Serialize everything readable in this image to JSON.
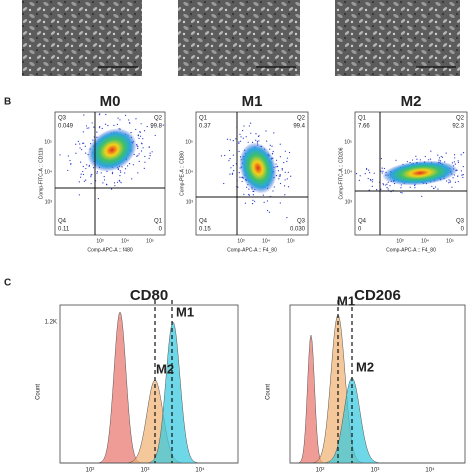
{
  "panel_labels": [
    "B",
    "C"
  ],
  "flow_plots": [
    {
      "title": "M0",
      "y_label": "Comp-FITC-A :: CD11b",
      "x_label": "Comp-APC-A :: f480",
      "y_ticks": [
        "10⁵",
        "10⁴",
        "10³"
      ],
      "x_ticks": [
        "10³",
        "10⁴",
        "10⁵"
      ],
      "quadrants": [
        {
          "name": "Q3",
          "value": "0.049"
        },
        {
          "name": "Q2",
          "value": "99.8"
        },
        {
          "name": "Q4",
          "value": "0.11"
        },
        {
          "name": "Q1",
          "value": "0"
        }
      ]
    },
    {
      "title": "M1",
      "y_label": "Comp-PE-A :: CD80",
      "x_label": "Comp-APC-A :: F4_80",
      "y_ticks": [
        "10⁵",
        "10⁴",
        "10³"
      ],
      "x_ticks": [
        "10³",
        "10⁴",
        "10⁵"
      ],
      "quadrants": [
        {
          "name": "Q1",
          "value": "0.37"
        },
        {
          "name": "Q2",
          "value": "99.4"
        },
        {
          "name": "Q4",
          "value": "0.15"
        },
        {
          "name": "Q3",
          "value": "0.030"
        }
      ]
    },
    {
      "title": "M2",
      "y_label": "Comp-FITC-A :: CD206",
      "x_label": "Comp-APC-A :: F4_80",
      "y_ticks": [
        "10⁵",
        "10⁴",
        "10³"
      ],
      "x_ticks": [
        "10³",
        "10⁴",
        "10⁵"
      ],
      "quadrants": [
        {
          "name": "Q1",
          "value": "7.66"
        },
        {
          "name": "Q2",
          "value": "92.3"
        },
        {
          "name": "Q4",
          "value": "0"
        },
        {
          "name": "Q3",
          "value": "0"
        }
      ]
    }
  ],
  "histograms": [
    {
      "title": "CD80",
      "y_label": "Count",
      "y_ticks": [
        "1.2K"
      ],
      "x_ticks": [
        "10²",
        "10³",
        "10⁴"
      ],
      "peak_labels": [
        "M1",
        "M2"
      ]
    },
    {
      "title": "CD206",
      "y_label": "Count",
      "x_ticks": [
        "10²",
        "10³",
        "10⁴"
      ],
      "peak_labels": [
        "M1",
        "M2"
      ]
    }
  ]
}
